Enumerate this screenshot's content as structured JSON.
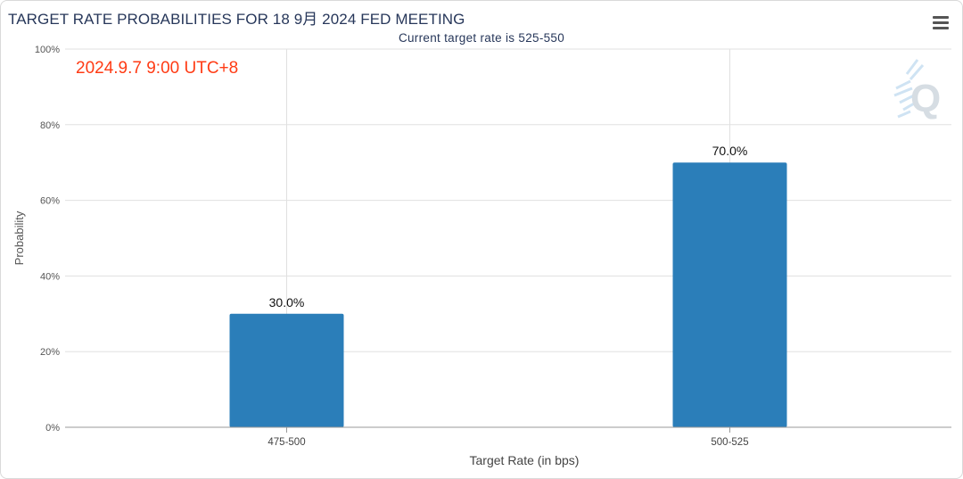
{
  "header": {
    "title": "TARGET RATE PROBABILITIES FOR 18 9月 2024 FED MEETING",
    "subtitle": "Current target rate is 525-550",
    "menu_icon": "hamburger-menu-icon"
  },
  "annotation": {
    "timestamp": "2024.9.7 9:00 UTC+8",
    "color": "#ff3b14"
  },
  "watermark": {
    "icon": "quikstrike-q-logo-icon",
    "letter": "Q"
  },
  "colors": {
    "bar": "#2b7eb9",
    "title": "#27375a",
    "grid": "#e0e0e0"
  },
  "chart_data": {
    "type": "bar",
    "title": "TARGET RATE PROBABILITIES FOR 18 9月 2024 FED MEETING",
    "subtitle": "Current target rate is 525-550",
    "categories": [
      "475-500",
      "500-525"
    ],
    "values": [
      30.0,
      70.0
    ],
    "data_labels": [
      "30.0%",
      "70.0%"
    ],
    "xlabel": "Target Rate (in bps)",
    "ylabel": "Probability",
    "ylim": [
      0,
      100
    ],
    "yticks": [
      0,
      20,
      40,
      60,
      80,
      100
    ],
    "ytick_labels": [
      "0%",
      "20%",
      "40%",
      "60%",
      "80%",
      "100%"
    ],
    "grid": true,
    "legend": "none"
  }
}
